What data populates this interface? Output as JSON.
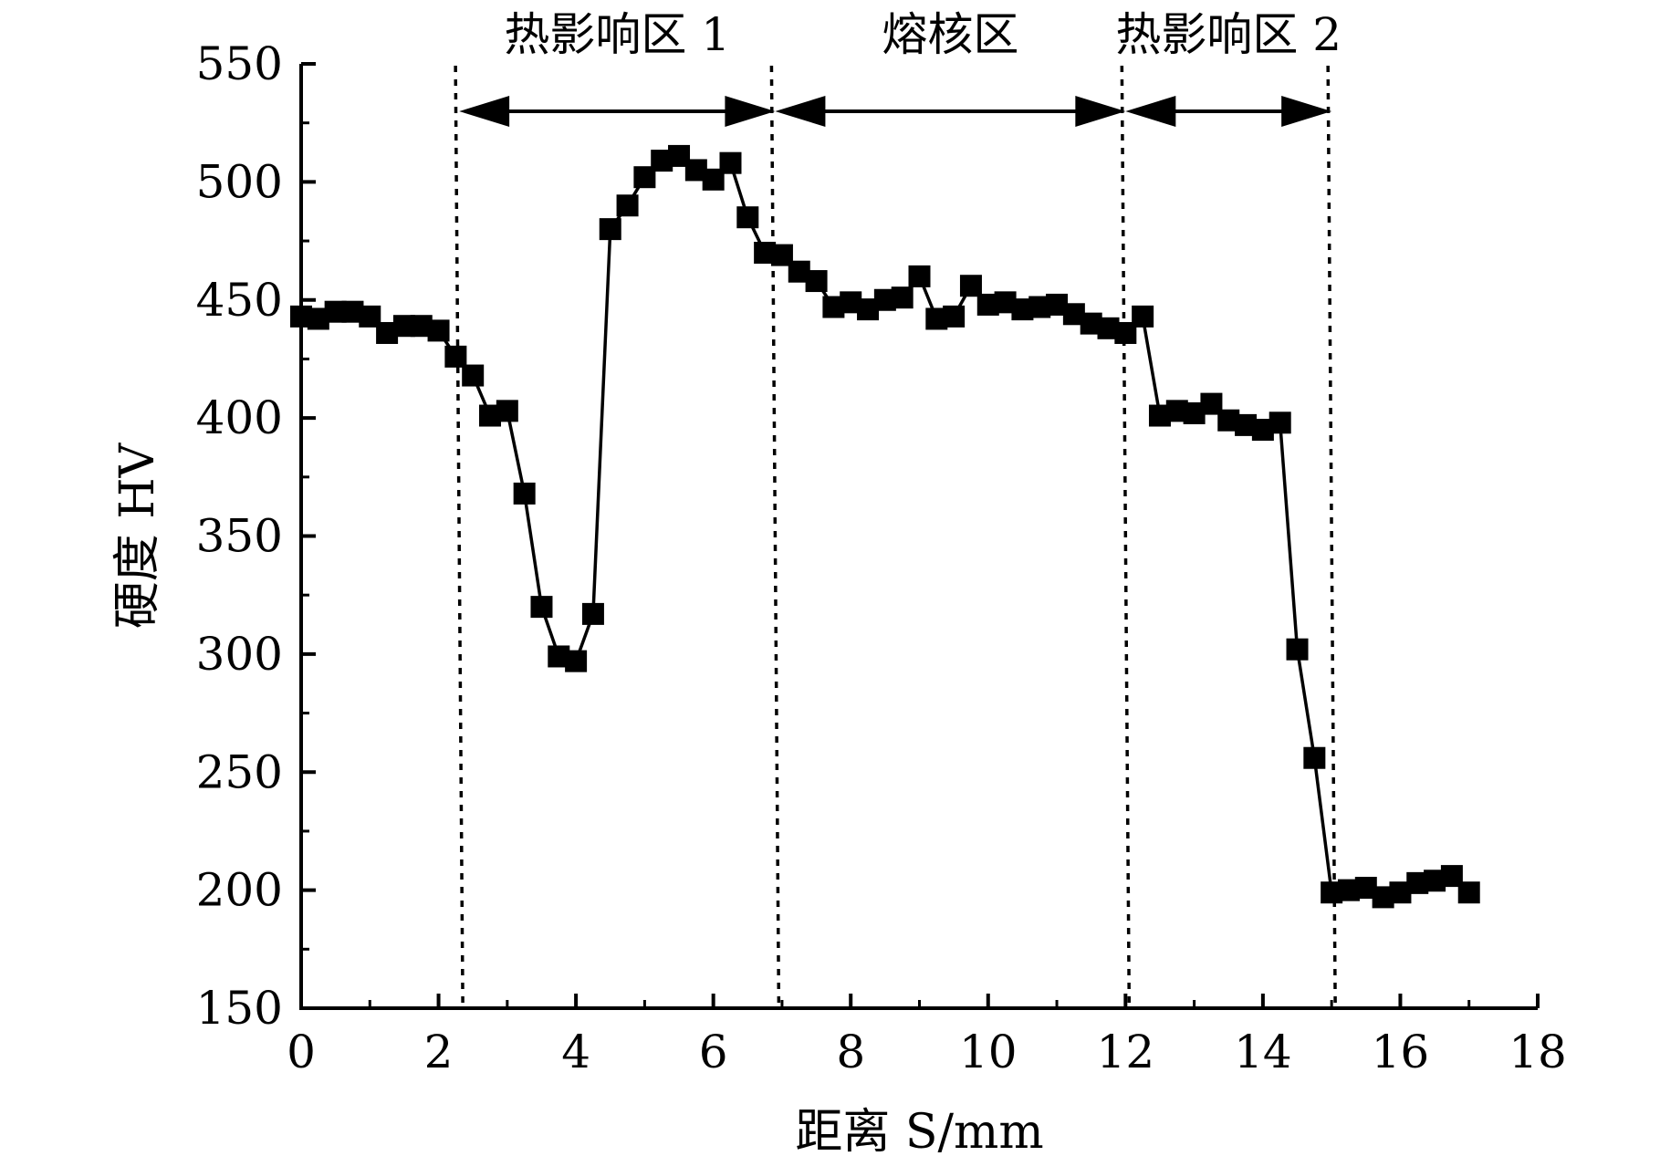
{
  "chart_data": {
    "type": "line",
    "title": "",
    "xlabel": "距离 S/mm",
    "ylabel": "硬度 HV",
    "xlim": [
      0,
      18
    ],
    "ylim": [
      150,
      550
    ],
    "x_ticks": [
      "0",
      "2",
      "4",
      "6",
      "8",
      "10",
      "12",
      "14",
      "16",
      "18"
    ],
    "y_ticks": [
      "150",
      "200",
      "250",
      "300",
      "350",
      "400",
      "450",
      "500",
      "550"
    ],
    "grid": false,
    "marker": "filled-square",
    "line_color": "#000000",
    "series": [
      {
        "x": [
          0,
          0.25,
          0.5,
          0.75,
          1.0,
          1.25,
          1.5,
          1.75,
          2.0,
          2.25,
          2.5,
          2.75,
          3.0,
          3.25,
          3.5,
          3.75,
          4.0,
          4.25,
          4.5,
          4.75,
          5.0,
          5.25,
          5.5,
          5.75,
          6.0,
          6.25,
          6.5,
          6.75,
          7.0,
          7.25,
          7.5,
          7.75,
          8.0,
          8.25,
          8.5,
          8.75,
          9.0,
          9.25,
          9.5,
          9.75,
          10.0,
          10.25,
          10.5,
          10.75,
          11.0,
          11.25,
          11.5,
          11.75,
          12.0,
          12.25,
          12.5,
          12.75,
          13.0,
          13.25,
          13.5,
          13.75,
          14.0,
          14.25,
          14.5,
          14.75,
          15.0,
          15.25,
          15.5,
          15.75,
          16.0,
          16.25,
          16.5,
          16.75,
          17.0
        ],
        "values": [
          443,
          442,
          445,
          445,
          443,
          436,
          439,
          439,
          437,
          426,
          418,
          401,
          403,
          368,
          320,
          299,
          297,
          317,
          480,
          490,
          502,
          509,
          511,
          505,
          501,
          508,
          485,
          470,
          469,
          462,
          458,
          447,
          449,
          446,
          450,
          451,
          460,
          442,
          443,
          456,
          448,
          449,
          446,
          447,
          448,
          444,
          440,
          438,
          436,
          443,
          401,
          403,
          402,
          406,
          399,
          397,
          395,
          398,
          302,
          256,
          199,
          200,
          201,
          197,
          199,
          203,
          204,
          206,
          199
        ]
      }
    ],
    "zone_boundaries": [
      2.3,
      6.9,
      12.0,
      15.0
    ],
    "zones": [
      {
        "label": "热影响区 1",
        "from": 2.3,
        "to": 6.9
      },
      {
        "label": "熔核区",
        "from": 6.9,
        "to": 12.0
      },
      {
        "label": "热影响区 2",
        "from": 12.0,
        "to": 15.0
      }
    ]
  }
}
